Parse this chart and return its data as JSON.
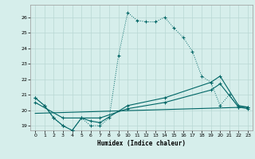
{
  "xlabel": "Humidex (Indice chaleur)",
  "bg_color": "#d6eeeb",
  "grid_color": "#b8d8d4",
  "line_color": "#006666",
  "xlim": [
    -0.5,
    23.5
  ],
  "ylim": [
    18.7,
    26.8
  ],
  "yticks": [
    19,
    20,
    21,
    22,
    23,
    24,
    25,
    26
  ],
  "xticks": [
    0,
    1,
    2,
    3,
    4,
    5,
    6,
    7,
    8,
    9,
    10,
    11,
    12,
    13,
    14,
    15,
    16,
    17,
    18,
    19,
    20,
    21,
    22,
    23
  ],
  "series1_x": [
    0,
    1,
    2,
    3,
    4,
    5,
    6,
    7,
    8,
    9,
    10,
    11,
    12,
    13,
    14,
    15,
    16,
    17,
    18,
    19,
    20,
    21,
    22,
    23
  ],
  "series1_y": [
    20.8,
    20.3,
    19.5,
    19.0,
    18.7,
    19.5,
    19.0,
    19.0,
    19.5,
    23.5,
    26.3,
    25.8,
    25.7,
    25.7,
    26.0,
    25.3,
    24.7,
    23.8,
    22.2,
    21.8,
    20.3,
    21.0,
    20.2,
    20.2
  ],
  "series2_x": [
    0,
    1,
    2,
    3,
    4,
    5,
    6,
    7,
    10,
    14,
    19,
    20,
    22,
    23
  ],
  "series2_y": [
    20.8,
    20.3,
    19.5,
    19.0,
    18.7,
    19.5,
    19.3,
    19.2,
    20.3,
    20.8,
    21.8,
    22.2,
    20.3,
    20.2
  ],
  "series3_x": [
    0,
    3,
    7,
    10,
    14,
    19,
    20,
    22,
    23
  ],
  "series3_y": [
    20.5,
    19.5,
    19.5,
    20.1,
    20.5,
    21.3,
    21.7,
    20.2,
    20.1
  ],
  "series4_x": [
    0,
    23
  ],
  "series4_y": [
    19.8,
    20.2
  ]
}
